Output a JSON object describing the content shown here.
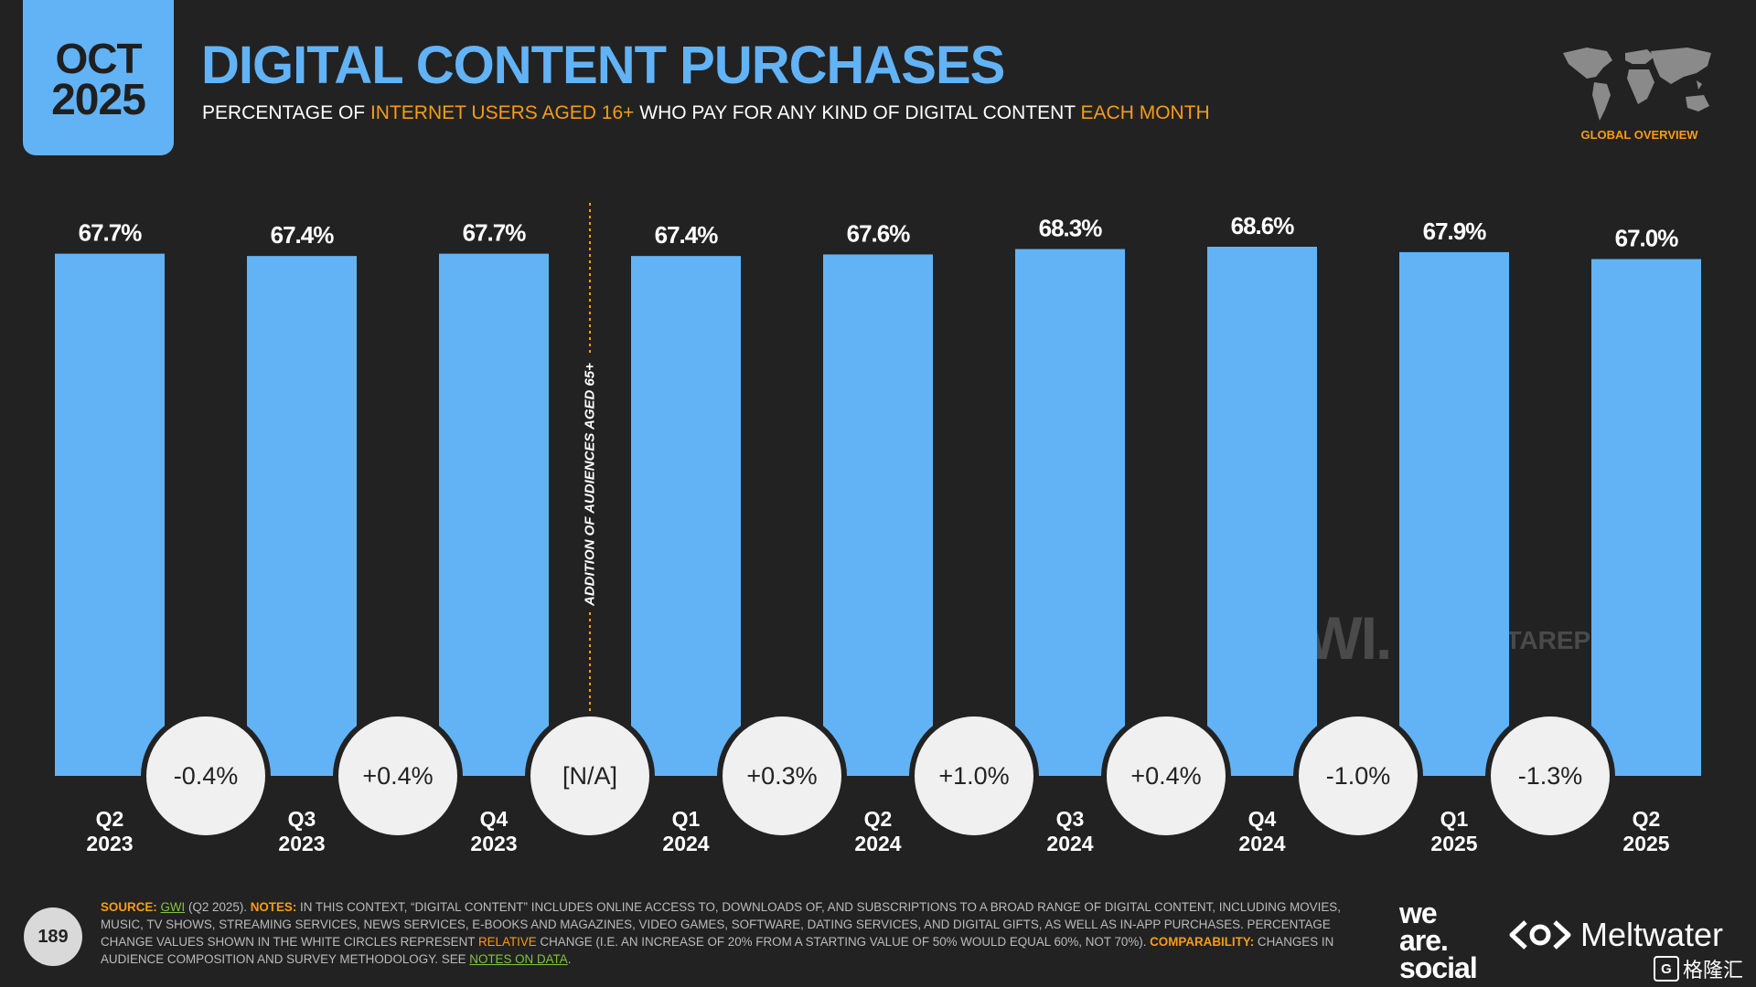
{
  "header": {
    "month": "OCT",
    "year": "2025",
    "title": "DIGITAL CONTENT PURCHASES",
    "subtitle_parts": [
      "PERCENTAGE OF ",
      "INTERNET USERS AGED 16+",
      " WHO PAY FOR ANY KIND OF DIGITAL CONTENT ",
      "EACH MONTH"
    ],
    "overview_label": "GLOBAL OVERVIEW"
  },
  "chart_data": {
    "type": "bar",
    "categories": [
      [
        "Q2",
        "2023"
      ],
      [
        "Q3",
        "2023"
      ],
      [
        "Q4",
        "2023"
      ],
      [
        "Q1",
        "2024"
      ],
      [
        "Q2",
        "2024"
      ],
      [
        "Q3",
        "2024"
      ],
      [
        "Q4",
        "2024"
      ],
      [
        "Q1",
        "2025"
      ],
      [
        "Q2",
        "2025"
      ]
    ],
    "values": [
      67.7,
      67.4,
      67.7,
      67.4,
      67.6,
      68.3,
      68.6,
      67.9,
      67.0
    ],
    "value_labels": [
      "67.7%",
      "67.4%",
      "67.7%",
      "67.4%",
      "67.6%",
      "68.3%",
      "68.6%",
      "67.9%",
      "67.0%"
    ],
    "changes": [
      "-0.4%",
      "+0.4%",
      "[N/A]",
      "+0.3%",
      "+1.0%",
      "+0.4%",
      "-1.0%",
      "-1.3%"
    ],
    "divider_label": "ADDITION OF AUDIENCES AGED 65+",
    "ylim": [
      0,
      68.6
    ],
    "bar_color": "#62b3f6",
    "divider_color": "#f79c16"
  },
  "watermarks": {
    "gwi": "GWI.",
    "datareportal": "DATAREPORTAL"
  },
  "footer": {
    "source_label": "SOURCE:",
    "source_link": "GWI",
    "source_rest": " (Q2 2025). ",
    "notes_label": "NOTES:",
    "notes_text": " IN THIS CONTEXT, “DIGITAL CONTENT” INCLUDES ONLINE ACCESS TO, DOWNLOADS OF, AND SUBSCRIPTIONS TO A BROAD RANGE OF DIGITAL CONTENT, INCLUDING MOVIES, MUSIC, TV SHOWS, STREAMING SERVICES, NEWS SERVICES, E-BOOKS AND MAGAZINES, VIDEO GAMES, SOFTWARE, DATING SERVICES, AND DIGITAL GIFTS, AS WELL AS IN-APP PURCHASES. PERCENTAGE CHANGE VALUES SHOWN IN THE WHITE CIRCLES REPRESENT ",
    "relative": "RELATIVE",
    "notes_text2": " CHANGE (I.E. AN INCREASE OF 20% FROM A STARTING VALUE OF 50% WOULD EQUAL 60%, NOT 70%). ",
    "comparability_label": "COMPARABILITY:",
    "comparability_text": " CHANGES IN AUDIENCE COMPOSITION AND SURVEY METHODOLOGY. SEE ",
    "notes_link": "NOTES ON DATA",
    "period": ".",
    "page_number": "189"
  },
  "brand": {
    "was_line1": "we",
    "was_line2": "are.",
    "was_line3": "social",
    "meltwater": "Meltwater",
    "corner_badge": "格隆汇",
    "corner_glyph": "G"
  },
  "colors": {
    "background": "#222222",
    "accent_blue": "#62b3f6",
    "accent_orange": "#f79c16",
    "link_green": "#80c342"
  }
}
